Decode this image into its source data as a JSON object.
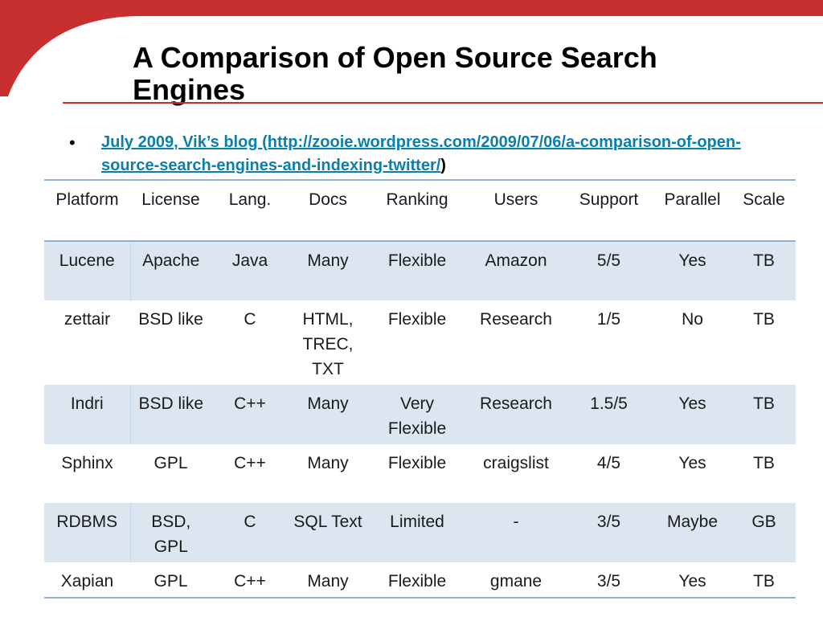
{
  "slide": {
    "title": "A Comparison of Open Source Search Engines",
    "bullet": {
      "link_text": "July 2009, Vik’s blog (http://zooie.wordpress.com/2009/07/06/a-comparison-of-open-source-search-engines-and-indexing-twitter/",
      "trailing_text": ")"
    },
    "colors": {
      "accent_red": "#c7302f",
      "link": "#0a7fae",
      "row_shade": "#dce6f1",
      "table_rule": "#8eb3d8"
    }
  },
  "table": {
    "columns": [
      "Platform",
      "License",
      "Lang.",
      "Docs",
      "Ranking",
      "Users",
      "Support",
      "Parallel",
      "Scale"
    ],
    "rows": [
      [
        "Lucene",
        "Apache",
        "Java",
        "Many",
        "Flexible",
        "Amazon",
        "5/5",
        "Yes",
        "TB"
      ],
      [
        "zettair",
        "BSD like",
        "C",
        "HTML, TREC, TXT",
        "Flexible",
        "Research",
        "1/5",
        "No",
        "TB"
      ],
      [
        "Indri",
        "BSD like",
        "C++",
        "Many",
        "Very Flexible",
        "Research",
        "1.5/5",
        "Yes",
        "TB"
      ],
      [
        "Sphinx",
        "GPL",
        "C++",
        "Many",
        "Flexible",
        "craigslist",
        "4/5",
        "Yes",
        "TB"
      ],
      [
        "RDBMS",
        "BSD, GPL",
        "C",
        "SQL Text",
        "Limited",
        "-",
        "3/5",
        "Maybe",
        "GB"
      ],
      [
        "Xapian",
        "GPL",
        "C++",
        "Many",
        "Flexible",
        "gmane",
        "3/5",
        "Yes",
        "TB"
      ]
    ]
  }
}
